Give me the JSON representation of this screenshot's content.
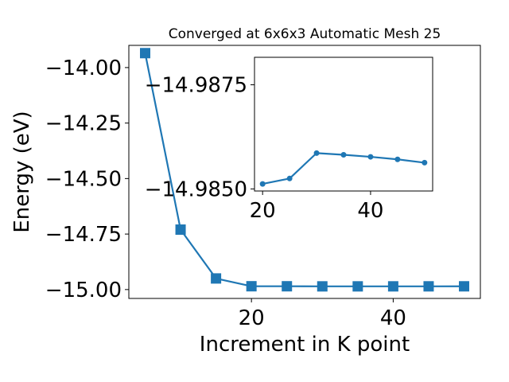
{
  "chart_data": [
    {
      "type": "line",
      "title": "Converged at 6x6x3 Automatic Mesh 25",
      "xlabel": "Increment in K point",
      "ylabel": "Energy (eV)",
      "xlim": [
        2.7,
        52.3
      ],
      "ylim": [
        -15.04,
        -13.9
      ],
      "xticks": [
        20,
        40
      ],
      "yticks": [
        -14.0,
        -14.25,
        -14.5,
        -14.75,
        -15.0
      ],
      "ytick_labels": [
        "−14.00",
        "−14.25",
        "−14.50",
        "−14.75",
        "−15.00"
      ],
      "xtick_labels": [
        "20",
        "40"
      ],
      "grid": false,
      "marker": "square",
      "color": "#1f77b4",
      "series": [
        {
          "x": [
            5,
            10,
            15,
            20,
            25,
            30,
            35,
            40,
            45,
            50
          ],
          "y": [
            -13.935,
            -14.73,
            -14.95,
            -14.9851,
            -14.9852,
            -14.9856,
            -14.9856,
            -14.98555,
            -14.9855,
            -14.9854
          ]
        }
      ]
    },
    {
      "type": "line",
      "title": "",
      "inset": true,
      "xlim": [
        18.5,
        51.5
      ],
      "ylim": [
        -14.98495,
        -14.98816
      ],
      "xticks": [
        20,
        40
      ],
      "xtick_labels": [
        "20",
        "40"
      ],
      "yticks": [
        -14.985,
        -14.9875
      ],
      "ytick_labels": [
        "−14.9850",
        "−14.9875"
      ],
      "grid": false,
      "marker": "circle",
      "color": "#1f77b4",
      "series": [
        {
          "x": [
            20,
            25,
            30,
            35,
            40,
            45,
            50
          ],
          "y": [
            -14.98512,
            -14.98525,
            -14.98586,
            -14.98582,
            -14.98577,
            -14.98571,
            -14.98563
          ]
        }
      ]
    }
  ]
}
